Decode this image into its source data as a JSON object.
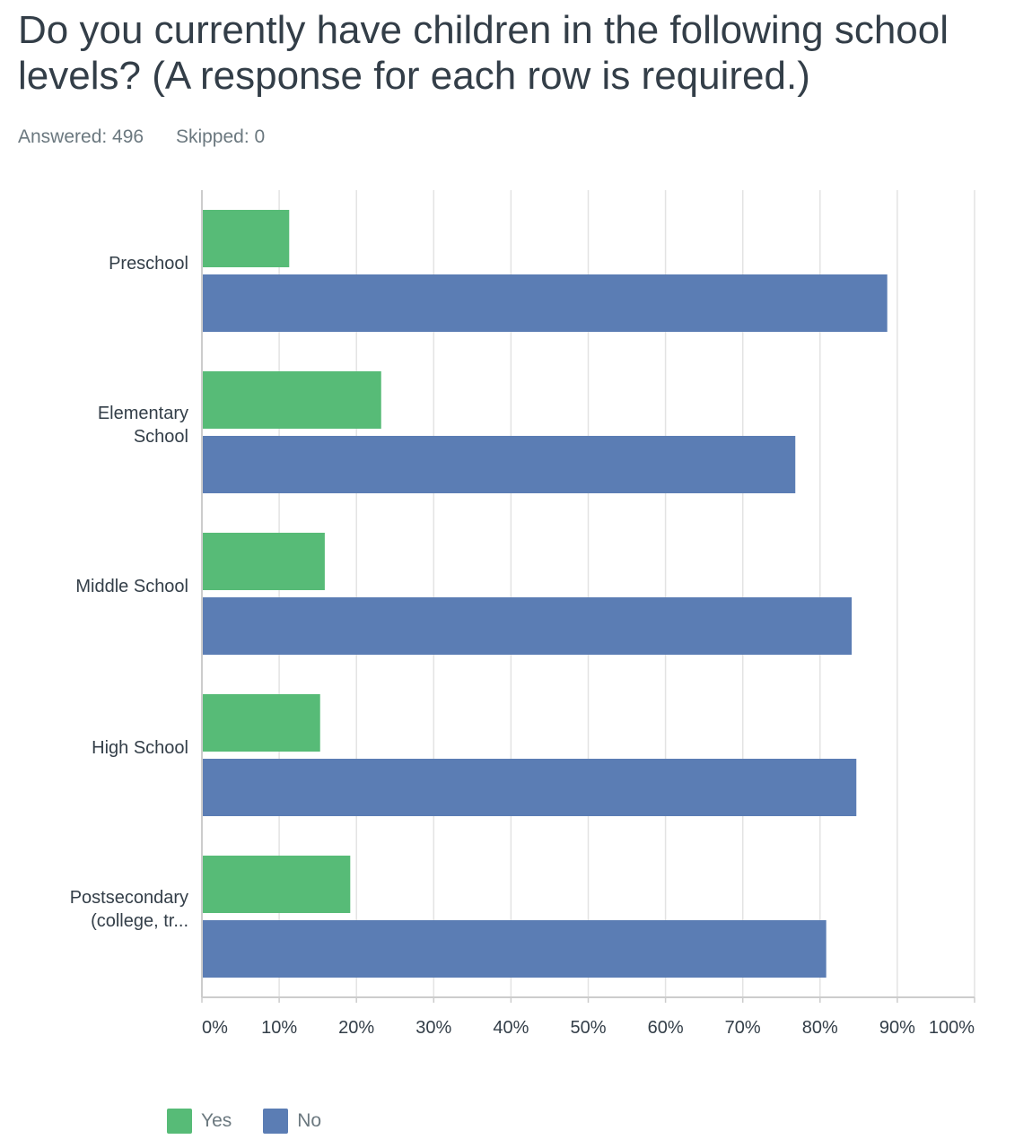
{
  "question": {
    "title": "Do you currently have children in the following school levels? (A response for each row is required.)",
    "answered_label": "Answered: 496",
    "skipped_label": "Skipped: 0"
  },
  "colors": {
    "yes": "#57bb77",
    "no": "#5b7db4",
    "grid": "#e3e3e3",
    "axis": "#cccccc",
    "label": "#333e48"
  },
  "chart_data": {
    "type": "bar",
    "orientation": "horizontal",
    "categories": [
      [
        "Preschool"
      ],
      [
        "Elementary",
        "School"
      ],
      [
        "Middle School"
      ],
      [
        "High School"
      ],
      [
        "Postsecondary",
        "(college, tr..."
      ]
    ],
    "series": [
      {
        "name": "Yes",
        "values": [
          11.3,
          23.2,
          15.9,
          15.3,
          19.2
        ]
      },
      {
        "name": "No",
        "values": [
          88.7,
          76.8,
          84.1,
          84.7,
          80.8
        ]
      }
    ],
    "xlim": [
      0,
      100
    ],
    "ticks": [
      "0%",
      "10%",
      "20%",
      "30%",
      "40%",
      "50%",
      "60%",
      "70%",
      "80%",
      "90%",
      "100%"
    ],
    "grid": true,
    "legend": "bottom-left"
  }
}
